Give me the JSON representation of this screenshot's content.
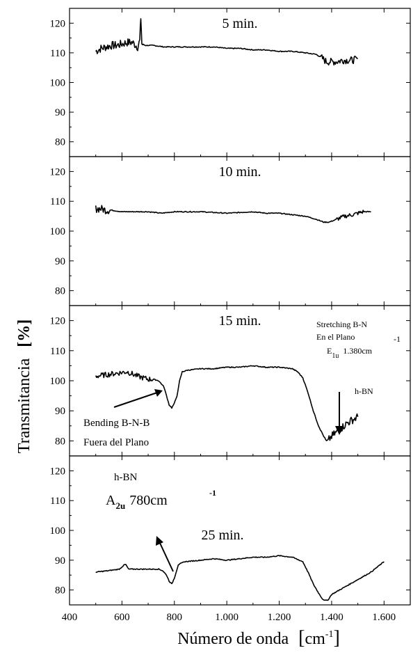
{
  "chart_data": {
    "type": "line",
    "xlabel": "Número de onda",
    "xlabel_unit": "cm",
    "xlabel_unit_exp": "-1",
    "ylabel": "Transmitancia",
    "ylabel_unit": "[%]",
    "xlim": [
      400,
      1700
    ],
    "x_ticks": [
      400,
      600,
      800,
      1000,
      1200,
      1400,
      1600
    ],
    "x_tick_labels": [
      "400",
      "600",
      "800",
      "1.000",
      "1.200",
      "1.400",
      "1.600"
    ],
    "grid": false,
    "panels": [
      {
        "title": "5 min.",
        "ylim": [
          75,
          125
        ],
        "y_ticks": [
          80,
          90,
          100,
          110,
          120
        ],
        "x": [
          500,
          520,
          540,
          560,
          580,
          600,
          620,
          640,
          660,
          668,
          672,
          676,
          690,
          720,
          760,
          800,
          850,
          900,
          950,
          1000,
          1050,
          1100,
          1150,
          1200,
          1250,
          1300,
          1340,
          1360,
          1380,
          1400,
          1420,
          1440,
          1460,
          1480,
          1500
        ],
        "y": [
          110.5,
          111.5,
          112,
          112.5,
          112.5,
          113,
          113.5,
          113.5,
          112,
          114,
          122,
          113,
          112.5,
          112.5,
          112,
          112,
          112,
          112,
          112,
          111.5,
          111.5,
          111,
          111,
          110.5,
          110.5,
          110,
          109.5,
          108.5,
          107,
          107,
          107,
          107.5,
          107.5,
          107.5,
          108
        ]
      },
      {
        "title": "10 min.",
        "ylim": [
          75,
          125
        ],
        "y_ticks": [
          80,
          90,
          100,
          110,
          120
        ],
        "x": [
          500,
          520,
          540,
          560,
          600,
          650,
          700,
          750,
          800,
          900,
          1000,
          1100,
          1150,
          1200,
          1250,
          1300,
          1340,
          1370,
          1390,
          1420,
          1450,
          1480,
          1500,
          1520,
          1550
        ],
        "y": [
          107.5,
          107.5,
          107,
          107,
          106.5,
          106.5,
          106.5,
          106,
          106.5,
          106.5,
          106,
          106.5,
          106,
          106,
          105.5,
          105,
          104,
          103,
          103,
          104,
          105,
          105.5,
          106,
          106.5,
          106.5
        ]
      },
      {
        "title": "15 min.",
        "ylim": [
          75,
          125
        ],
        "y_ticks": [
          80,
          90,
          100,
          110,
          120
        ],
        "x": [
          500,
          540,
          580,
          620,
          660,
          700,
          720,
          740,
          760,
          770,
          780,
          790,
          800,
          810,
          820,
          830,
          850,
          900,
          950,
          1000,
          1050,
          1100,
          1150,
          1200,
          1250,
          1270,
          1290,
          1310,
          1330,
          1350,
          1370,
          1380,
          1390,
          1400,
          1420,
          1440,
          1460,
          1480,
          1500
        ],
        "y": [
          101.5,
          102,
          102.5,
          103,
          101.5,
          100.5,
          100.5,
          100,
          98,
          95,
          92,
          91,
          92.5,
          95,
          100,
          103,
          103.5,
          104,
          104,
          104.5,
          104.5,
          105,
          104.5,
          104.5,
          104,
          103,
          101,
          96,
          90,
          85,
          81.5,
          80,
          80.5,
          81.5,
          83,
          84.5,
          86,
          87,
          88
        ]
      },
      {
        "title": "25 min.",
        "ylim": [
          75,
          125
        ],
        "y_ticks": [
          80,
          90,
          100,
          110,
          120
        ],
        "x": [
          500,
          550,
          590,
          610,
          615,
          625,
          640,
          700,
          740,
          755,
          770,
          780,
          790,
          800,
          815,
          840,
          900,
          950,
          1000,
          1050,
          1100,
          1150,
          1200,
          1250,
          1290,
          1310,
          1330,
          1350,
          1365,
          1375,
          1385,
          1400,
          1450,
          1500,
          1550,
          1600
        ],
        "y": [
          86,
          86.5,
          87,
          88.5,
          88.5,
          87,
          87,
          87,
          87,
          86.5,
          85,
          83,
          82,
          84,
          88.5,
          89.5,
          90,
          90.5,
          90,
          90.5,
          91,
          91,
          91.5,
          91,
          89.5,
          86,
          82,
          79,
          77,
          76.5,
          76.5,
          78.5,
          81,
          83.5,
          86,
          89.5
        ]
      }
    ],
    "annotations": {
      "panel3_stretch_1": "Stretching B-N",
      "panel3_stretch_2": "En el Plano",
      "panel3_stretch_3": "E",
      "panel3_stretch_sub": "1u",
      "panel3_stretch_4": "1.380cm",
      "panel3_stretch_exp": "-1",
      "panel3_hbn": "h-BN",
      "panel3_bend_1": "Bending B-N-B",
      "panel3_bend_2": "Fuera del Plano",
      "panel4_hbn": "h-BN",
      "panel4_a": "A",
      "panel4_a_sub": "2u",
      "panel4_a_val": "780cm",
      "panel4_a_exp": "-1"
    }
  }
}
